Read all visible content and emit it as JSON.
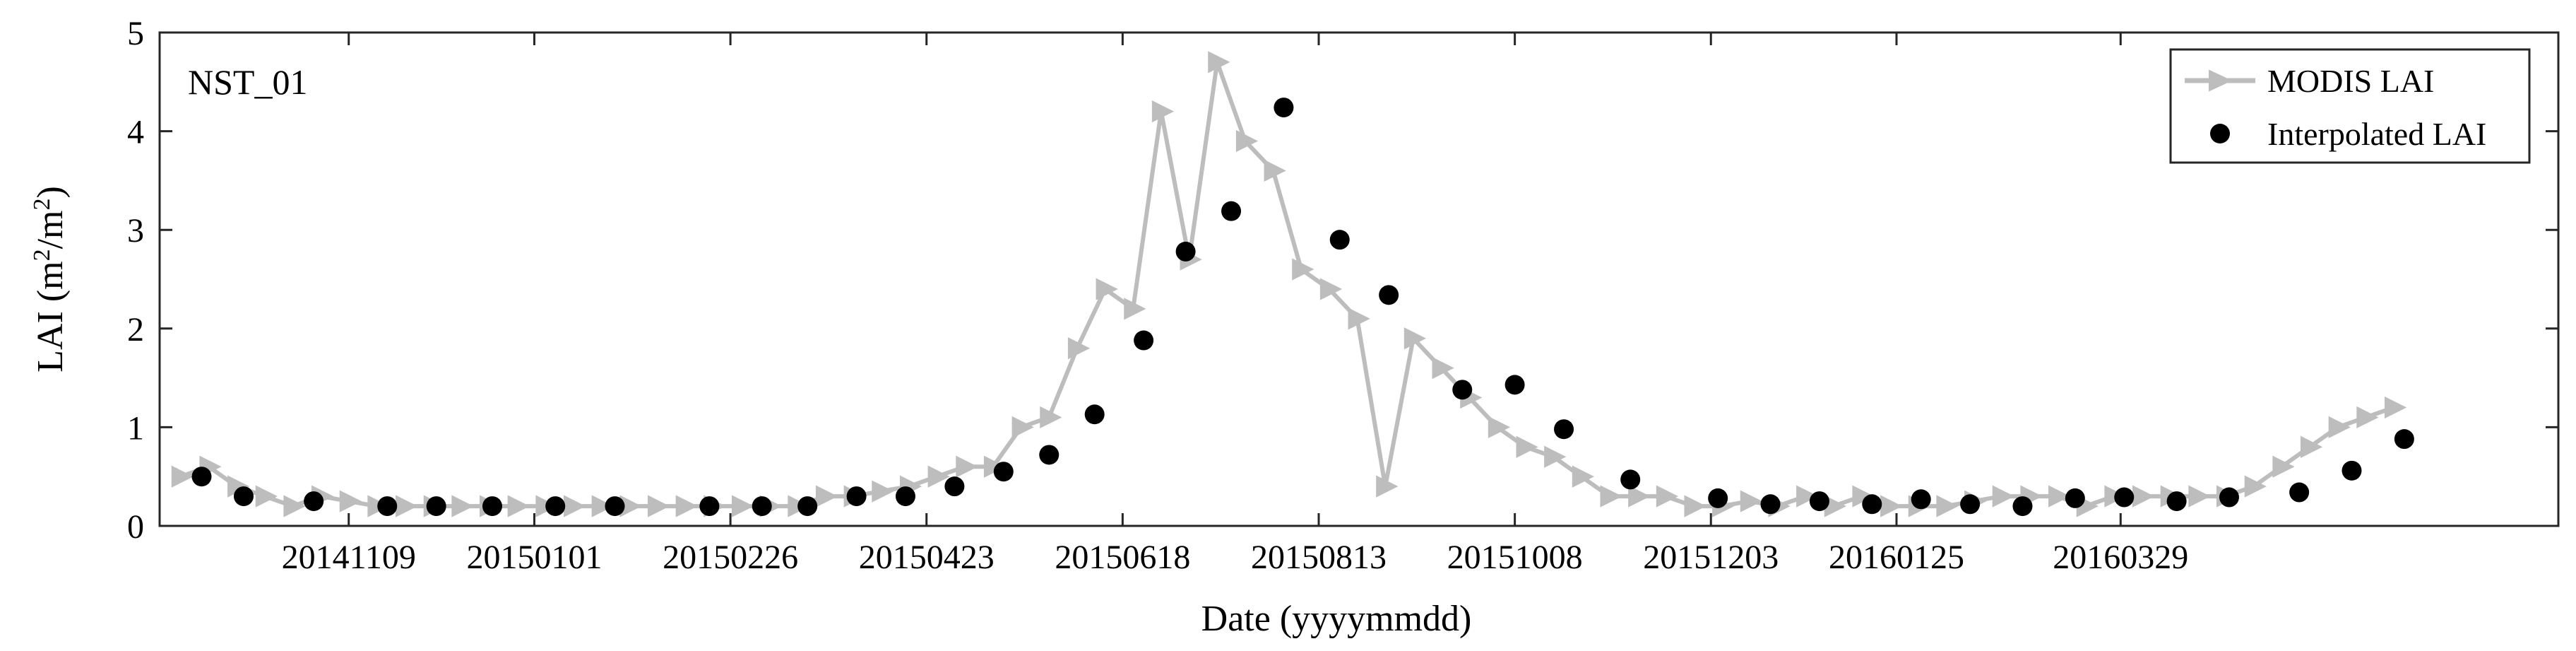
{
  "chart_data": {
    "type": "line",
    "annotation": "NST_01",
    "xlabel": "Date (yyyymmdd)",
    "ylabel": "LAI (m²/m²)",
    "ylabel_parts": [
      "LAI (m",
      "2",
      "/m",
      "2",
      ")"
    ],
    "xlim": [
      "2014-09-16",
      "2016-08-01"
    ],
    "ylim": [
      0,
      5
    ],
    "yticks": [
      0,
      1,
      2,
      3,
      4,
      5
    ],
    "xticks": [
      {
        "date": "2014-11-09",
        "label": "20141109"
      },
      {
        "date": "2015-01-01",
        "label": "20150101"
      },
      {
        "date": "2015-02-26",
        "label": "20150226"
      },
      {
        "date": "2015-04-23",
        "label": "20150423"
      },
      {
        "date": "2015-06-18",
        "label": "20150618"
      },
      {
        "date": "2015-08-13",
        "label": "20150813"
      },
      {
        "date": "2015-10-08",
        "label": "20151008"
      },
      {
        "date": "2015-12-03",
        "label": "20151203"
      },
      {
        "date": "2016-01-25",
        "label": "20160125"
      },
      {
        "date": "2016-03-29",
        "label": "20160329"
      }
    ],
    "grid": false,
    "legend_location": "top-right",
    "series": [
      {
        "name": "MODIS LAI",
        "style": "line-with-triangle-markers",
        "color": "#bdbdbd",
        "points": [
          [
            "2014-09-22",
            0.5
          ],
          [
            "2014-09-30",
            0.6
          ],
          [
            "2014-10-08",
            0.4
          ],
          [
            "2014-10-16",
            0.3
          ],
          [
            "2014-10-24",
            0.2
          ],
          [
            "2014-11-01",
            0.3
          ],
          [
            "2014-11-09",
            0.25
          ],
          [
            "2014-11-17",
            0.2
          ],
          [
            "2014-11-25",
            0.2
          ],
          [
            "2014-12-03",
            0.2
          ],
          [
            "2014-12-11",
            0.2
          ],
          [
            "2014-12-19",
            0.2
          ],
          [
            "2014-12-27",
            0.2
          ],
          [
            "2015-01-04",
            0.2
          ],
          [
            "2015-01-12",
            0.2
          ],
          [
            "2015-01-20",
            0.2
          ],
          [
            "2015-01-28",
            0.2
          ],
          [
            "2015-02-05",
            0.2
          ],
          [
            "2015-02-13",
            0.2
          ],
          [
            "2015-02-21",
            0.2
          ],
          [
            "2015-03-01",
            0.2
          ],
          [
            "2015-03-09",
            0.2
          ],
          [
            "2015-03-17",
            0.2
          ],
          [
            "2015-03-25",
            0.3
          ],
          [
            "2015-04-02",
            0.3
          ],
          [
            "2015-04-10",
            0.35
          ],
          [
            "2015-04-18",
            0.4
          ],
          [
            "2015-04-26",
            0.5
          ],
          [
            "2015-05-04",
            0.6
          ],
          [
            "2015-05-12",
            0.6
          ],
          [
            "2015-05-20",
            1.0
          ],
          [
            "2015-05-28",
            1.1
          ],
          [
            "2015-06-05",
            1.8
          ],
          [
            "2015-06-13",
            2.4
          ],
          [
            "2015-06-21",
            2.2
          ],
          [
            "2015-06-29",
            4.2
          ],
          [
            "2015-07-07",
            2.7
          ],
          [
            "2015-07-15",
            4.7
          ],
          [
            "2015-07-23",
            3.9
          ],
          [
            "2015-07-31",
            3.6
          ],
          [
            "2015-08-08",
            2.6
          ],
          [
            "2015-08-16",
            2.4
          ],
          [
            "2015-08-24",
            2.1
          ],
          [
            "2015-09-01",
            0.4
          ],
          [
            "2015-09-09",
            1.9
          ],
          [
            "2015-09-17",
            1.6
          ],
          [
            "2015-09-25",
            1.3
          ],
          [
            "2015-10-03",
            1.0
          ],
          [
            "2015-10-11",
            0.8
          ],
          [
            "2015-10-19",
            0.7
          ],
          [
            "2015-10-27",
            0.5
          ],
          [
            "2015-11-04",
            0.3
          ],
          [
            "2015-11-12",
            0.3
          ],
          [
            "2015-11-20",
            0.3
          ],
          [
            "2015-11-28",
            0.2
          ],
          [
            "2015-12-06",
            0.2
          ],
          [
            "2015-12-14",
            0.25
          ],
          [
            "2015-12-22",
            0.2
          ],
          [
            "2015-12-30",
            0.3
          ],
          [
            "2016-01-07",
            0.2
          ],
          [
            "2016-01-15",
            0.3
          ],
          [
            "2016-01-23",
            0.2
          ],
          [
            "2016-01-31",
            0.2
          ],
          [
            "2016-02-08",
            0.2
          ],
          [
            "2016-02-16",
            0.25
          ],
          [
            "2016-02-24",
            0.3
          ],
          [
            "2016-03-03",
            0.3
          ],
          [
            "2016-03-11",
            0.3
          ],
          [
            "2016-03-19",
            0.2
          ],
          [
            "2016-03-27",
            0.3
          ],
          [
            "2016-04-04",
            0.3
          ],
          [
            "2016-04-12",
            0.3
          ],
          [
            "2016-04-20",
            0.3
          ],
          [
            "2016-04-28",
            0.3
          ],
          [
            "2016-05-06",
            0.4
          ],
          [
            "2016-05-14",
            0.6
          ],
          [
            "2016-05-22",
            0.8
          ],
          [
            "2016-05-30",
            1.0
          ],
          [
            "2016-06-07",
            1.1
          ],
          [
            "2016-06-15",
            1.2
          ]
        ]
      },
      {
        "name": "Interpolated LAI",
        "style": "filled-circle-markers",
        "color": "#000000",
        "points": [
          [
            "2014-09-28",
            0.5
          ],
          [
            "2014-10-10",
            0.3
          ],
          [
            "2014-10-30",
            0.25
          ],
          [
            "2014-11-20",
            0.2
          ],
          [
            "2014-12-04",
            0.2
          ],
          [
            "2014-12-20",
            0.2
          ],
          [
            "2015-01-07",
            0.2
          ],
          [
            "2015-01-24",
            0.2
          ],
          [
            "2015-02-20",
            0.2
          ],
          [
            "2015-03-07",
            0.2
          ],
          [
            "2015-03-20",
            0.2
          ],
          [
            "2015-04-03",
            0.3
          ],
          [
            "2015-04-17",
            0.3
          ],
          [
            "2015-05-01",
            0.4
          ],
          [
            "2015-05-15",
            0.55
          ],
          [
            "2015-05-28",
            0.72
          ],
          [
            "2015-06-10",
            1.13
          ],
          [
            "2015-06-24",
            1.88
          ],
          [
            "2015-07-06",
            2.78
          ],
          [
            "2015-07-19",
            3.19
          ],
          [
            "2015-08-03",
            4.24
          ],
          [
            "2015-08-19",
            2.9
          ],
          [
            "2015-09-02",
            2.34
          ],
          [
            "2015-09-23",
            1.38
          ],
          [
            "2015-10-08",
            1.43
          ],
          [
            "2015-10-22",
            0.98
          ],
          [
            "2015-11-10",
            0.47
          ],
          [
            "2015-12-05",
            0.28
          ],
          [
            "2015-12-20",
            0.22
          ],
          [
            "2016-01-03",
            0.25
          ],
          [
            "2016-01-18",
            0.22
          ],
          [
            "2016-02-01",
            0.27
          ],
          [
            "2016-02-15",
            0.22
          ],
          [
            "2016-03-01",
            0.2
          ],
          [
            "2016-03-16",
            0.28
          ],
          [
            "2016-03-30",
            0.29
          ],
          [
            "2016-04-14",
            0.25
          ],
          [
            "2016-04-29",
            0.29
          ],
          [
            "2016-05-19",
            0.34
          ],
          [
            "2016-06-03",
            0.56
          ],
          [
            "2016-06-18",
            0.88
          ]
        ]
      }
    ]
  }
}
